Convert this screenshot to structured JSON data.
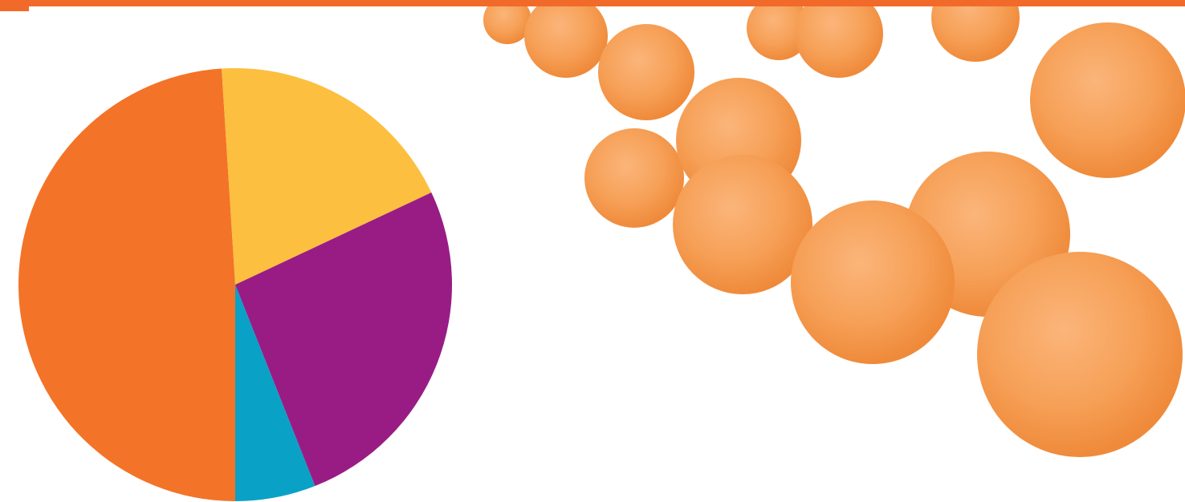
{
  "chart_data": {
    "type": "pie",
    "categories": [
      null,
      null,
      null,
      null
    ],
    "values": [
      49,
      19,
      26,
      6
    ],
    "colors": [
      "#f37328",
      "#fcbf3f",
      "#991c85",
      "#0aa1c6"
    ]
  }
}
